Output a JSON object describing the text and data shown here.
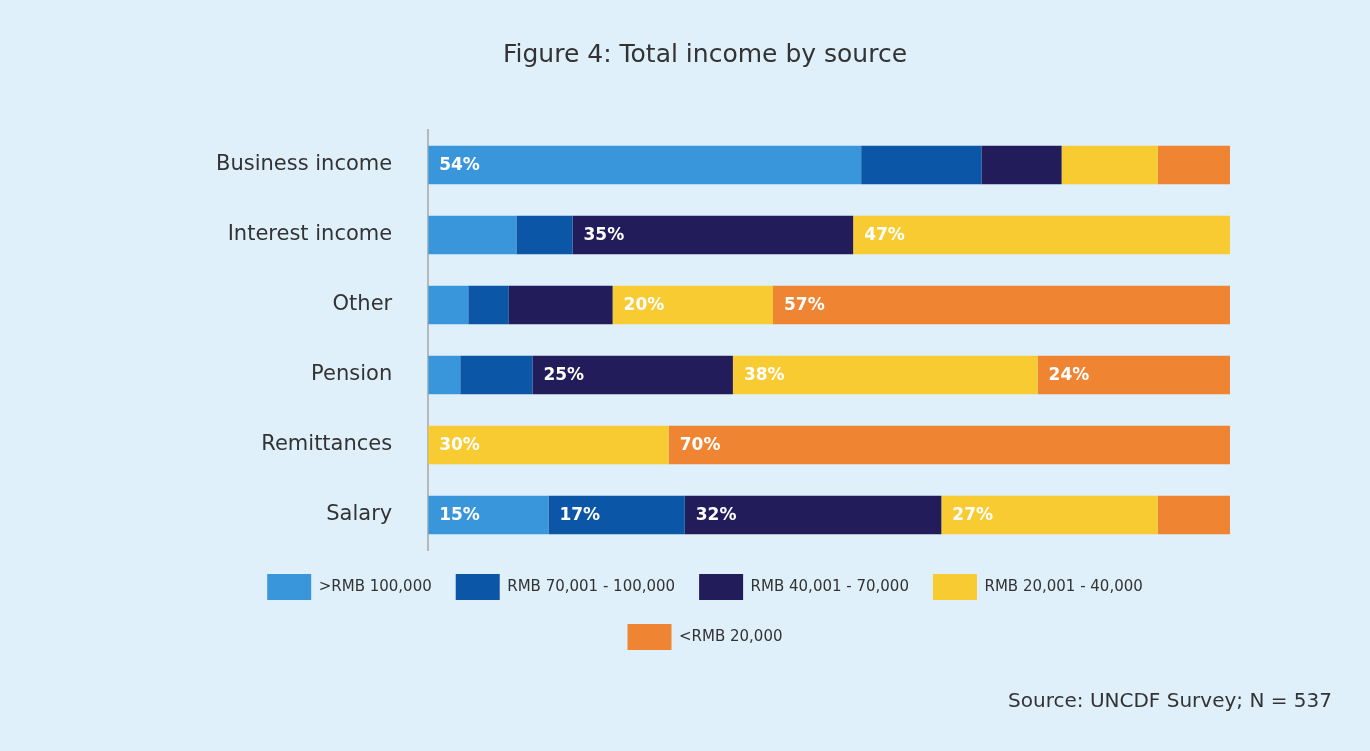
{
  "chart_data": {
    "type": "bar",
    "orientation": "horizontal",
    "stacked": true,
    "title": "Figure 4: Total income by source",
    "categories": [
      "Business income",
      "Interest income",
      "Other",
      "Pension",
      "Remittances",
      "Salary"
    ],
    "series": [
      {
        "name": ">RMB 100,000",
        "color": "#3a96db",
        "values": [
          54,
          11,
          5,
          4,
          0,
          15
        ],
        "value_labels": [
          "54%",
          null,
          null,
          null,
          null,
          "15%"
        ]
      },
      {
        "name": "RMB 70,001 - 100,000",
        "color": "#0b56a6",
        "values": [
          15,
          7,
          5,
          9,
          0,
          17
        ],
        "value_labels": [
          null,
          null,
          null,
          null,
          null,
          "17%"
        ]
      },
      {
        "name": "RMB 40,001 - 70,000",
        "color": "#221c5a",
        "values": [
          10,
          35,
          13,
          25,
          0,
          32
        ],
        "value_labels": [
          null,
          "35%",
          null,
          "25%",
          null,
          "32%"
        ]
      },
      {
        "name": "RMB 20,001 - 40,000",
        "color": "#f8cb33",
        "values": [
          12,
          47,
          20,
          38,
          30,
          27
        ],
        "value_labels": [
          null,
          "47%",
          "20%",
          "38%",
          "30%",
          "27%"
        ]
      },
      {
        "name": "<RMB 20,000",
        "color": "#ef8432",
        "values": [
          9,
          0,
          57,
          24,
          70,
          9
        ],
        "value_labels": [
          null,
          null,
          "57%",
          "24%",
          "70%",
          null
        ]
      }
    ],
    "xlim": [
      0,
      100
    ],
    "tick_labels": "y",
    "legend": "bottom",
    "annotations": [
      "Source: UNCDF Survey; N = 537"
    ]
  }
}
